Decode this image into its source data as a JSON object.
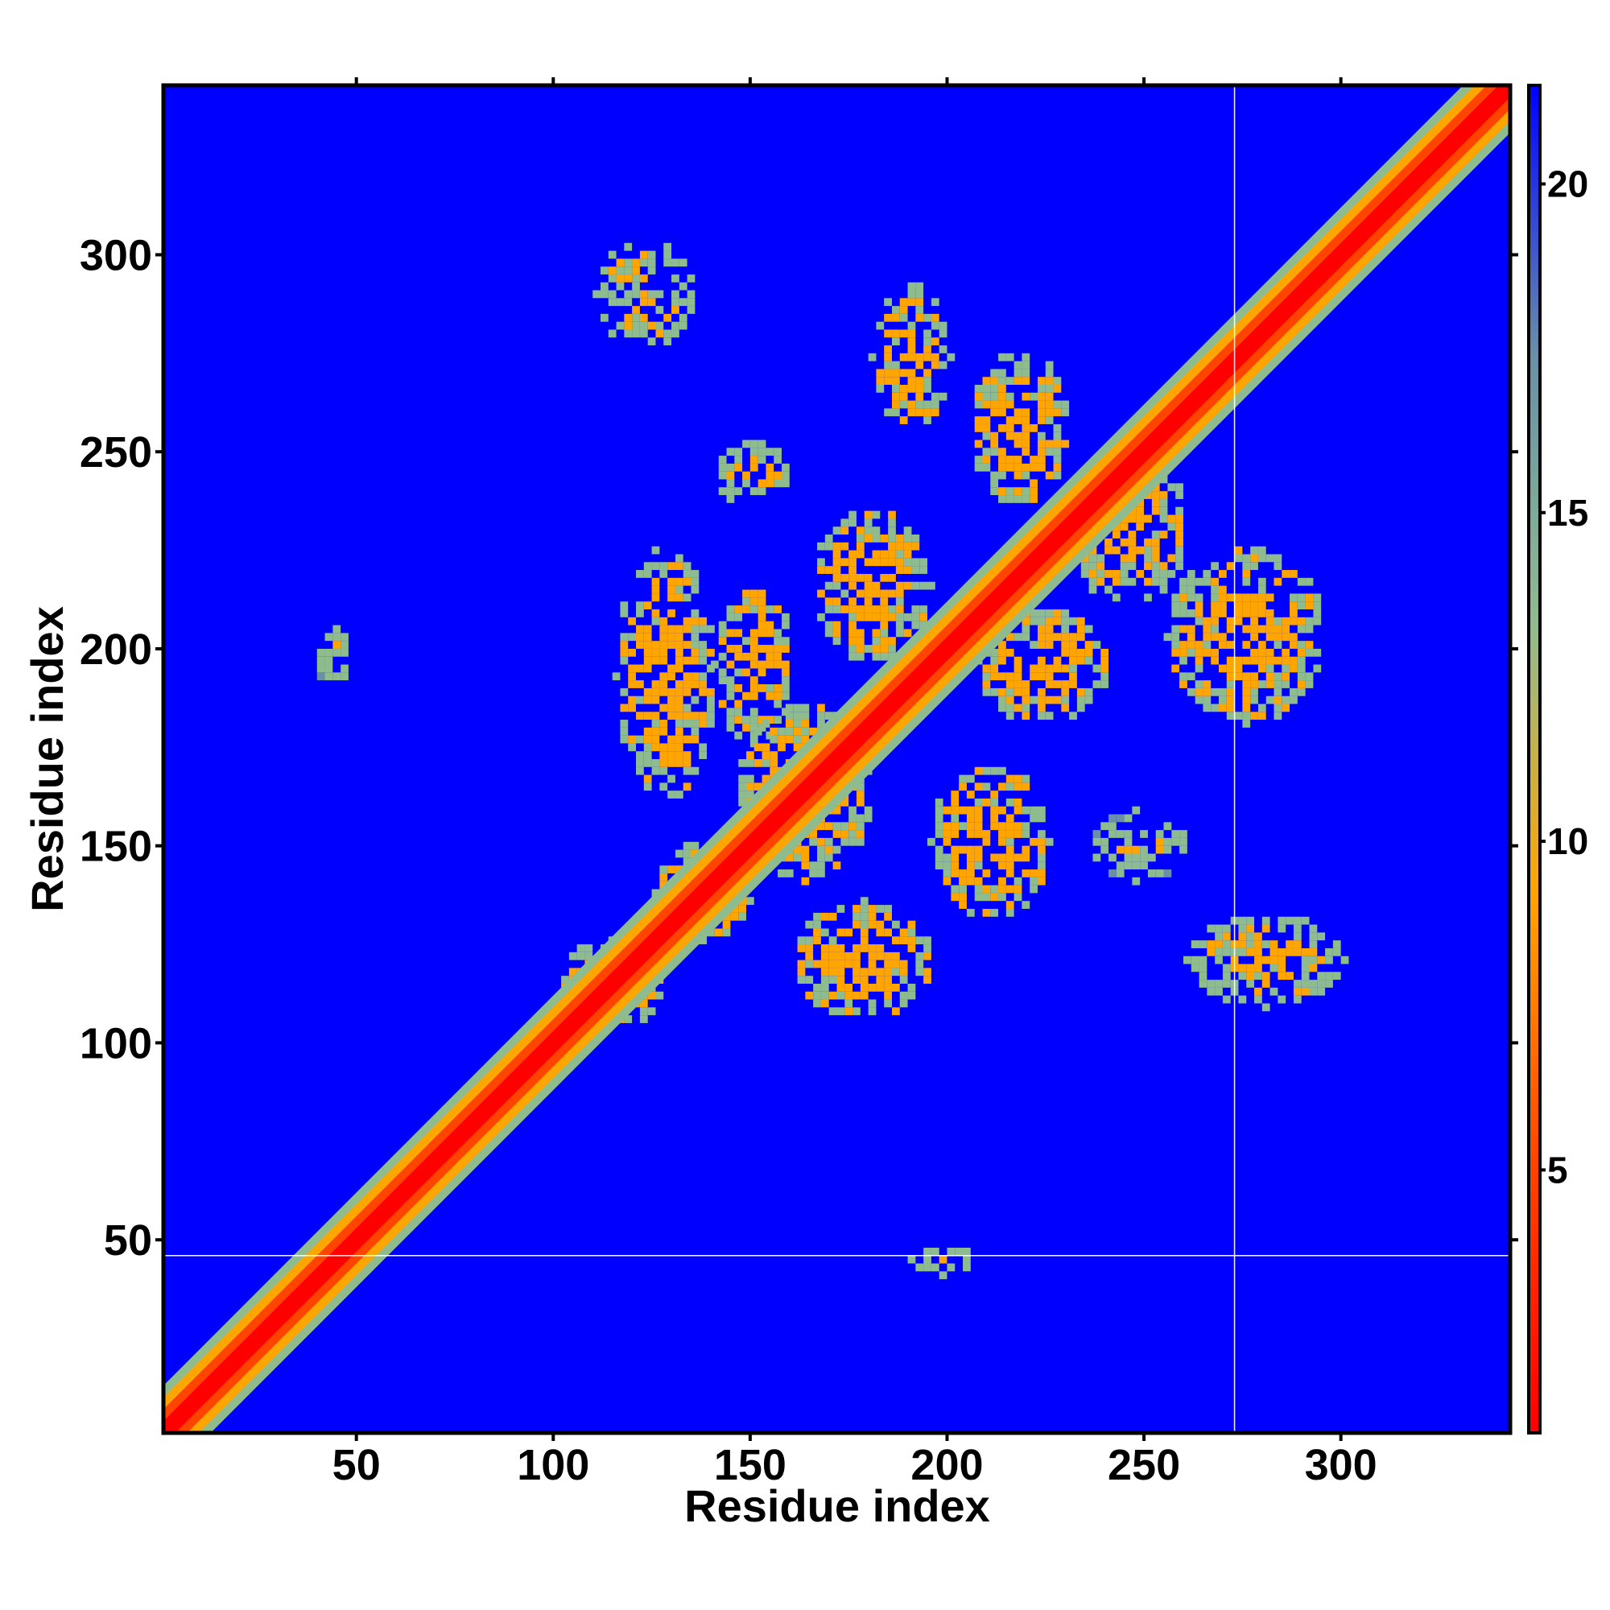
{
  "chart_data": {
    "type": "heatmap",
    "title": "",
    "xlabel": "Residue index",
    "ylabel": "Residue index",
    "xlim": [
      1,
      343
    ],
    "ylim": [
      1,
      343
    ],
    "x_ticks": [
      50,
      100,
      150,
      200,
      250,
      300
    ],
    "y_ticks": [
      50,
      100,
      150,
      200,
      250,
      300
    ],
    "x_tick_labels": [
      "50",
      "100",
      "150",
      "200",
      "250",
      "300"
    ],
    "y_tick_labels": [
      "50",
      "100",
      "150",
      "200",
      "250",
      "300"
    ],
    "colorbar": {
      "range": [
        1,
        21.5
      ],
      "ticks": [
        5,
        10,
        15,
        20
      ],
      "tick_labels": [
        "5",
        "10",
        "15",
        "20"
      ],
      "colors": [
        "#ff0000",
        "#ff4400",
        "#ffa500",
        "#8fbc8f",
        "#6a8fa8",
        "#0000ff"
      ]
    },
    "background_value": 21.5,
    "background_color": "#0000ff",
    "reference_lines": {
      "x": 273,
      "y": 46
    },
    "diagonal": {
      "from": 1,
      "to": 343,
      "width": 4
    },
    "contact_regions": [
      {
        "x": [
          1,
          8
        ],
        "y": [
          1,
          8
        ],
        "value": 6
      },
      {
        "x": [
          100,
          128
        ],
        "y": [
          103,
          125
        ],
        "value": 11
      },
      {
        "x": [
          110,
          135
        ],
        "y": [
          275,
          303
        ],
        "value": 12
      },
      {
        "x": [
          140,
          160
        ],
        "y": [
          235,
          252
        ],
        "value": 12
      },
      {
        "x": [
          180,
          200
        ],
        "y": [
          255,
          292
        ],
        "value": 11
      },
      {
        "x": [
          205,
          230
        ],
        "y": [
          235,
          275
        ],
        "value": 11
      },
      {
        "x": [
          115,
          140
        ],
        "y": [
          160,
          225
        ],
        "value": 11
      },
      {
        "x": [
          140,
          160
        ],
        "y": [
          175,
          215
        ],
        "value": 11
      },
      {
        "x": [
          145,
          180
        ],
        "y": [
          140,
          185
        ],
        "value": 11
      },
      {
        "x": [
          165,
          195
        ],
        "y": [
          195,
          235
        ],
        "value": 11
      },
      {
        "x": [
          205,
          240
        ],
        "y": [
          180,
          210
        ],
        "value": 11
      },
      {
        "x": [
          230,
          260
        ],
        "y": [
          210,
          250
        ],
        "value": 11
      },
      {
        "x": [
          255,
          295
        ],
        "y": [
          180,
          225
        ],
        "value": 11
      },
      {
        "x": [
          125,
          150
        ],
        "y": [
          125,
          150
        ],
        "value": 11
      },
      {
        "x": [
          160,
          195
        ],
        "y": [
          105,
          135
        ],
        "value": 11
      },
      {
        "x": [
          195,
          225
        ],
        "y": [
          130,
          170
        ],
        "value": 11
      },
      {
        "x": [
          235,
          260
        ],
        "y": [
          140,
          158
        ],
        "value": 13
      },
      {
        "x": [
          260,
          300
        ],
        "y": [
          108,
          132
        ],
        "value": 12
      },
      {
        "x": [
          38,
          48
        ],
        "y": [
          190,
          205
        ],
        "value": 13
      },
      {
        "x": [
          190,
          205
        ],
        "y": [
          40,
          48
        ],
        "value": 13
      }
    ]
  }
}
